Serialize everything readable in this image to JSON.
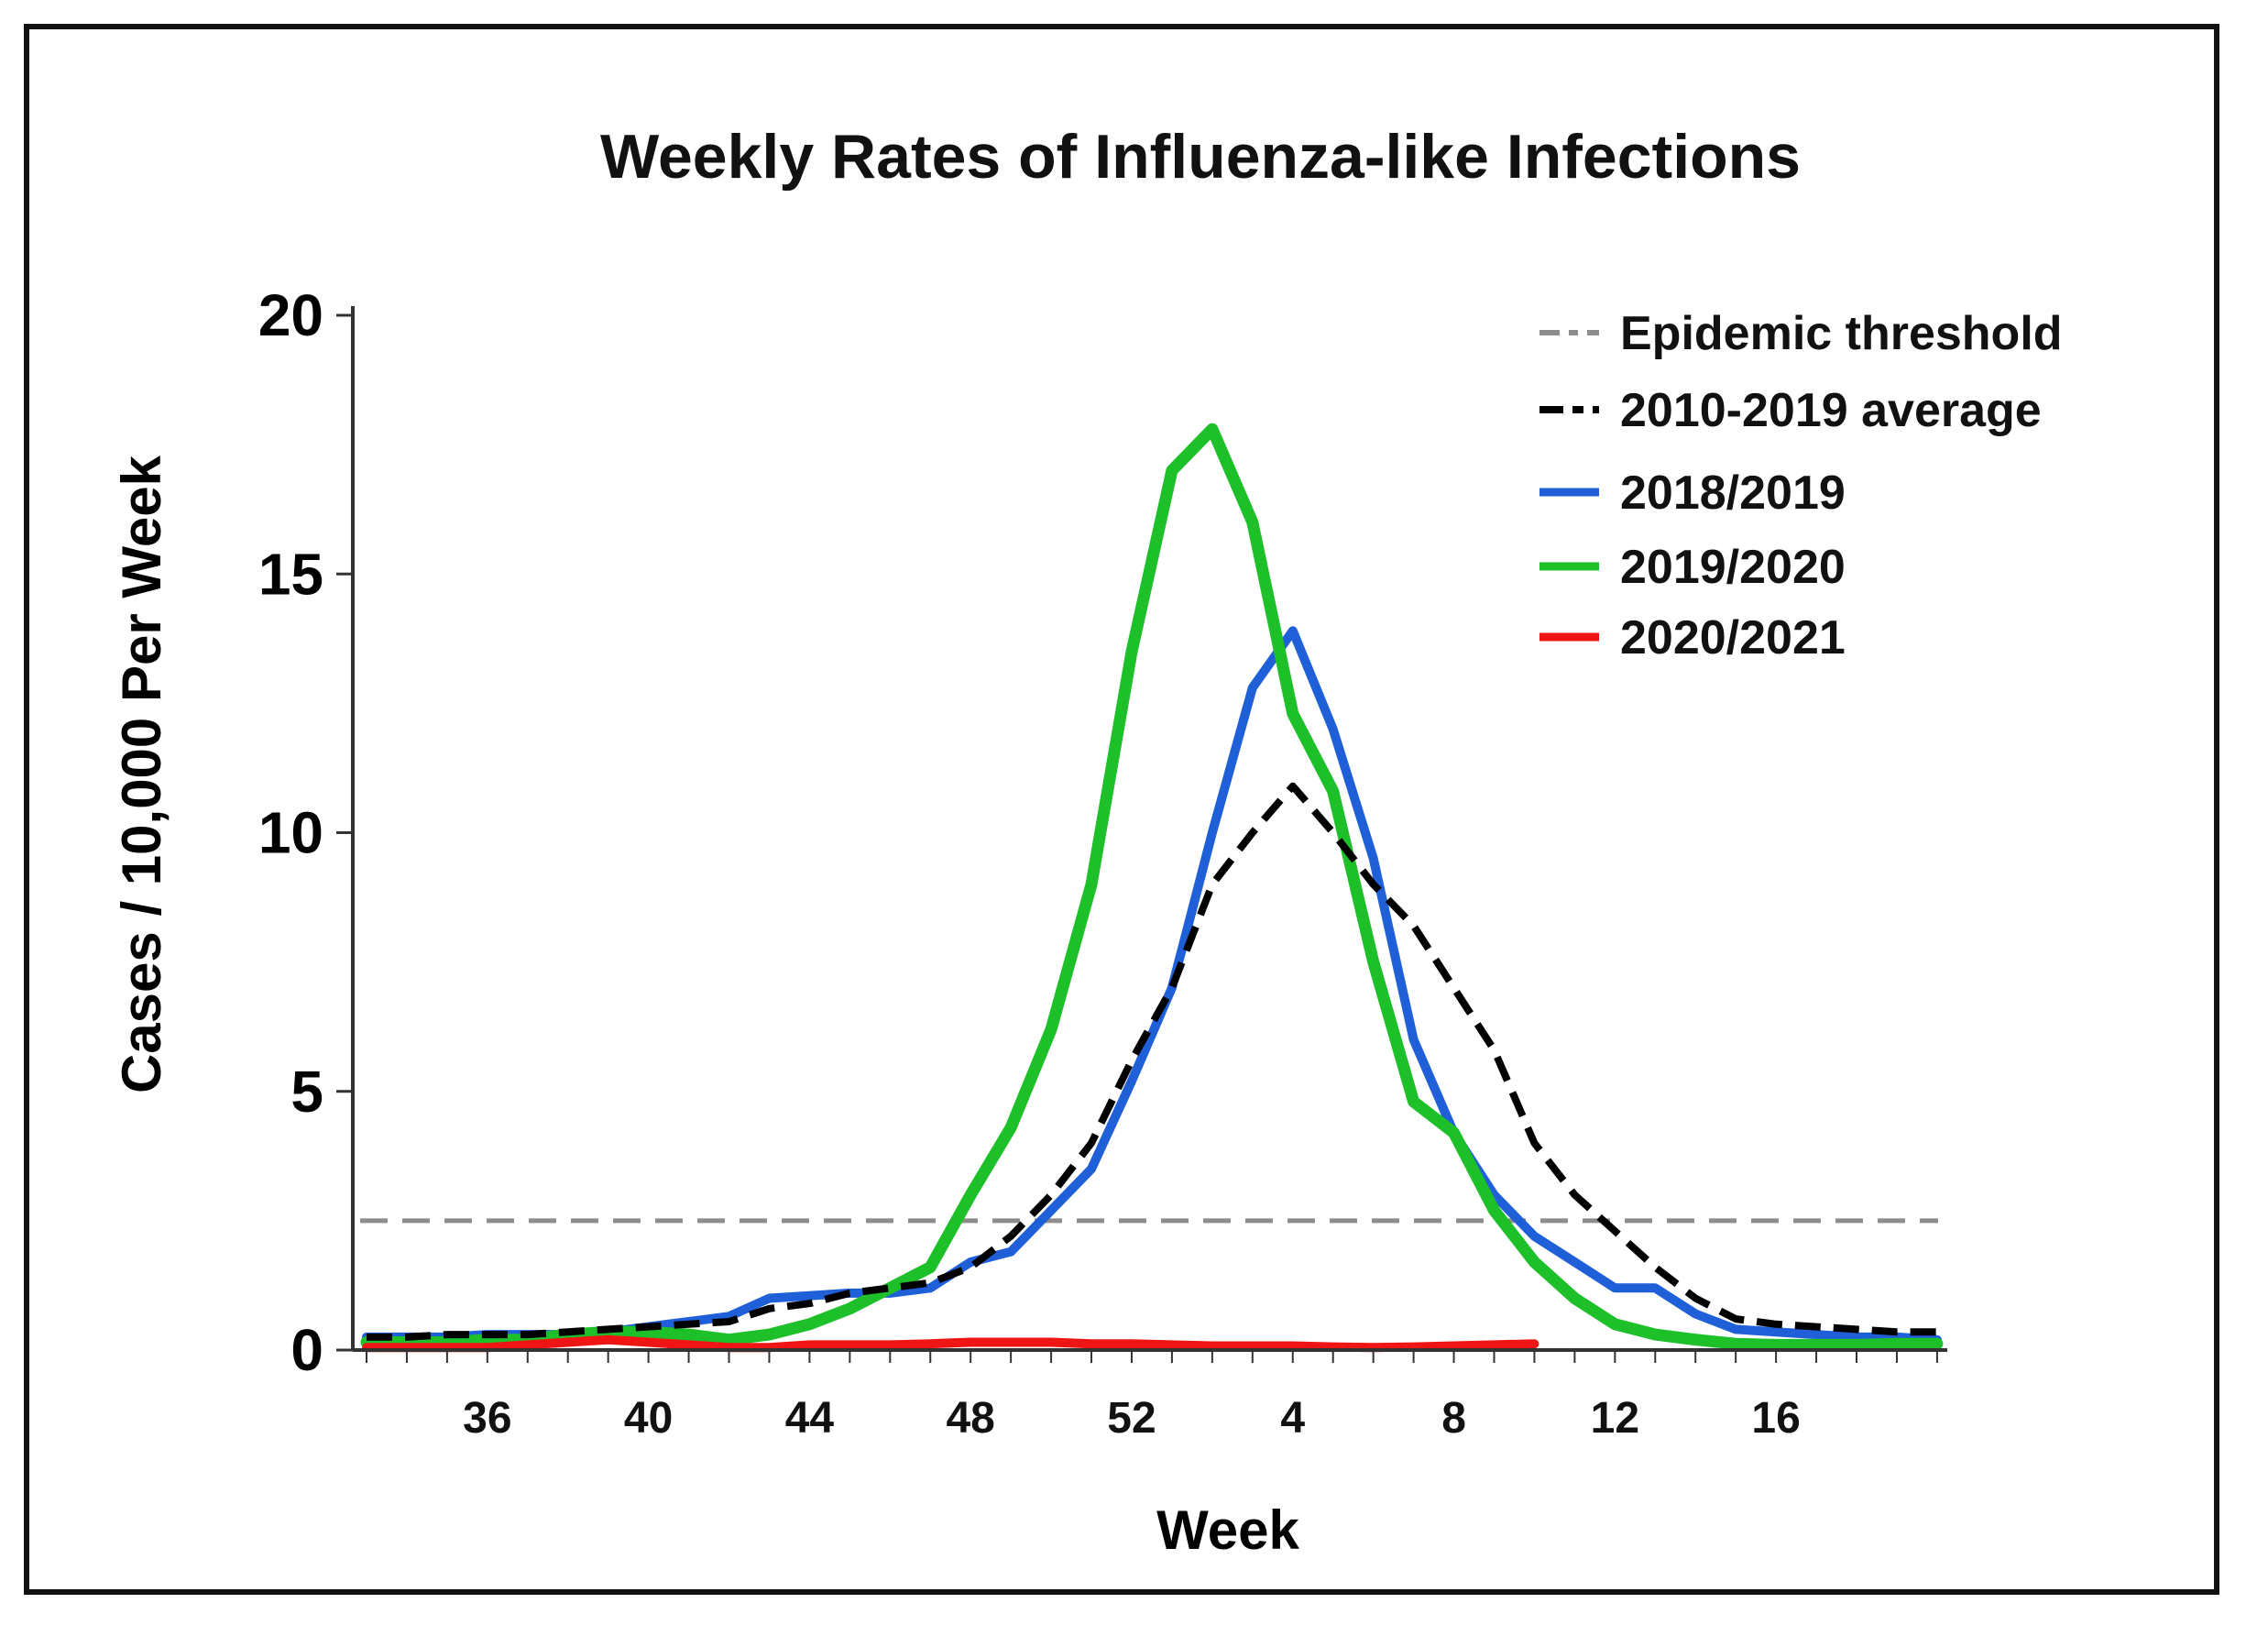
{
  "chart_data": {
    "type": "line",
    "title": "Weekly Rates of Influenza-like Infections",
    "xlabel": "Week",
    "ylabel": "Cases / 10,000 Per Week",
    "ylim": [
      0,
      20
    ],
    "yticks": [
      0,
      5,
      10,
      15,
      20
    ],
    "week_sequence": [
      33,
      34,
      35,
      36,
      37,
      38,
      39,
      40,
      41,
      42,
      43,
      44,
      45,
      46,
      47,
      48,
      49,
      50,
      51,
      52,
      1,
      2,
      3,
      4,
      5,
      6,
      7,
      8,
      9,
      10,
      11,
      12,
      13,
      14,
      15,
      16,
      17,
      18,
      19,
      20
    ],
    "xticks": [
      36,
      40,
      44,
      48,
      52,
      4,
      8,
      12,
      16
    ],
    "series": [
      {
        "name": "Epidemic threshold",
        "color": "#8c8c8c",
        "style": "dashed",
        "values": [
          2.5,
          2.5,
          2.5,
          2.5,
          2.5,
          2.5,
          2.5,
          2.5,
          2.5,
          2.5,
          2.5,
          2.5,
          2.5,
          2.5,
          2.5,
          2.5,
          2.5,
          2.5,
          2.5,
          2.5,
          2.5,
          2.5,
          2.5,
          2.5,
          2.5,
          2.5,
          2.5,
          2.5,
          2.5,
          2.5,
          2.5,
          2.5,
          2.5,
          2.5,
          2.5,
          2.5,
          2.5,
          2.5,
          2.5,
          2.5
        ]
      },
      {
        "name": "2010-2019 average",
        "color": "#000000",
        "style": "dashed",
        "values": [
          0.25,
          0.25,
          0.3,
          0.3,
          0.3,
          0.35,
          0.4,
          0.45,
          0.5,
          0.55,
          0.8,
          0.9,
          1.1,
          1.2,
          1.3,
          1.6,
          2.2,
          3.0,
          4.0,
          5.6,
          7.0,
          9.0,
          10.0,
          10.9,
          10.0,
          9.0,
          8.2,
          7.0,
          5.8,
          4.0,
          3.0,
          2.3,
          1.6,
          1.0,
          0.6,
          0.5,
          0.45,
          0.4,
          0.35,
          0.35
        ]
      },
      {
        "name": "2018/2019",
        "color": "#1f5fd8",
        "style": "solid",
        "values": [
          0.25,
          0.25,
          0.25,
          0.3,
          0.3,
          0.3,
          0.35,
          0.45,
          0.55,
          0.65,
          1.0,
          1.05,
          1.1,
          1.1,
          1.2,
          1.7,
          1.9,
          2.7,
          3.5,
          5.2,
          7.0,
          10.0,
          12.8,
          13.9,
          12.0,
          9.5,
          6.0,
          4.2,
          3.0,
          2.2,
          1.7,
          1.2,
          1.2,
          0.7,
          0.4,
          0.35,
          0.3,
          0.25,
          0.25,
          0.2
        ]
      },
      {
        "name": "2019/2020",
        "color": "#1ec02a",
        "style": "solid",
        "values": [
          0.15,
          0.15,
          0.15,
          0.2,
          0.2,
          0.3,
          0.35,
          0.35,
          0.3,
          0.2,
          0.3,
          0.5,
          0.8,
          1.2,
          1.6,
          3.0,
          4.3,
          6.2,
          9.0,
          13.5,
          17.0,
          17.8,
          16.0,
          12.3,
          10.8,
          7.5,
          4.8,
          4.2,
          2.7,
          1.7,
          1.0,
          0.5,
          0.3,
          0.2,
          0.12,
          0.1,
          0.1,
          0.1,
          0.12,
          0.12
        ]
      },
      {
        "name": "2020/2021",
        "color": "#f01515",
        "style": "solid",
        "values": [
          0.05,
          0.05,
          0.05,
          0.05,
          0.1,
          0.15,
          0.2,
          0.15,
          0.1,
          0.05,
          0.05,
          0.1,
          0.1,
          0.1,
          0.12,
          0.15,
          0.15,
          0.15,
          0.12,
          0.12,
          0.1,
          0.08,
          0.08,
          0.08,
          0.06,
          0.05,
          0.06,
          0.08,
          0.1,
          0.12,
          null,
          null,
          null,
          null,
          null,
          null,
          null,
          null,
          null,
          null
        ]
      }
    ],
    "legend_position": "top-right"
  }
}
